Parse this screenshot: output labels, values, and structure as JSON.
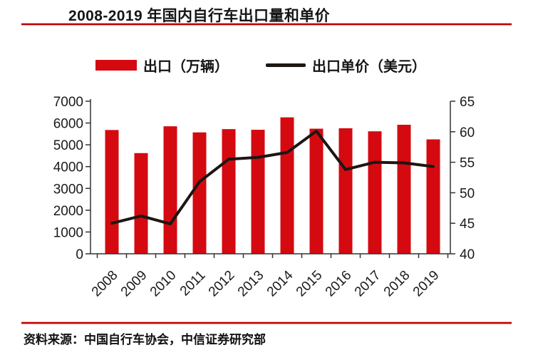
{
  "title": "2008-2019 年国内自行车出口量和单价",
  "source": "资料来源：中国自行车协会，中信证券研究部",
  "legend": [
    {
      "label": "出口（万辆）",
      "type": "bar"
    },
    {
      "label": "出口单价（美元）",
      "type": "line"
    }
  ],
  "colors": {
    "bar": "#d40a10",
    "line": "#1d1613",
    "rule": "#c00000",
    "axis": "#333333",
    "tick_label": "#1a1a1a"
  },
  "chart_data": {
    "type": "bar",
    "subtype": "bar+line combo, dual axis",
    "title": "2008-2019 年国内自行车出口量和单价",
    "categories": [
      "2008",
      "2009",
      "2010",
      "2011",
      "2012",
      "2013",
      "2014",
      "2015",
      "2016",
      "2017",
      "2018",
      "2019"
    ],
    "series": [
      {
        "name": "出口（万辆）",
        "type": "bar",
        "axis": "left",
        "values": [
          5680,
          4620,
          5850,
          5570,
          5720,
          5690,
          6260,
          5740,
          5760,
          5620,
          5920,
          5250
        ]
      },
      {
        "name": "出口单价（美元）",
        "type": "line",
        "axis": "right",
        "values": [
          45.0,
          46.2,
          44.9,
          51.8,
          55.5,
          55.8,
          56.6,
          60.1,
          53.8,
          55.0,
          54.9,
          54.3
        ]
      }
    ],
    "left_axis": {
      "min": 0,
      "max": 7000,
      "step": 1000,
      "tick_labels": [
        "0",
        "1000",
        "2000",
        "3000",
        "4000",
        "5000",
        "6000",
        "7000"
      ]
    },
    "right_axis": {
      "min": 40,
      "max": 65,
      "step": 5,
      "tick_labels": [
        "40",
        "45",
        "50",
        "55",
        "60",
        "65"
      ]
    },
    "xlabel": "",
    "ylabel_left": "",
    "ylabel_right": "",
    "grid": false,
    "legend_position": "top",
    "x_tick_rotation": -45
  }
}
